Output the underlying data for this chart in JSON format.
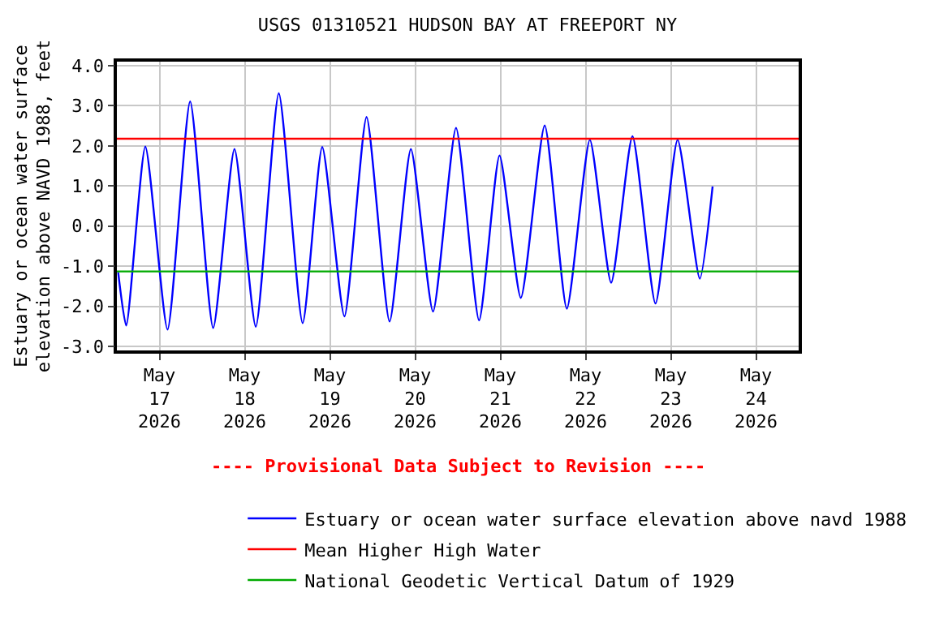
{
  "chart_data": {
    "type": "line",
    "title": "USGS 01310521 HUDSON BAY AT FREEPORT NY",
    "ylabel": "Estuary or ocean water surface\nelevation above NAVD 1988, feet",
    "annotations": [
      "---- Provisional Data Subject to Revision ----"
    ],
    "series": [
      {
        "name": "Estuary or ocean water surface elevation above navd 1988",
        "color": "#0000ff",
        "x": [
          "2026-05-16T12:22",
          "2026-05-16T14:38",
          "2026-05-16T20:01",
          "2026-05-17T02:16",
          "2026-05-17T08:38",
          "2026-05-17T15:07",
          "2026-05-17T21:07",
          "2026-05-18T03:07",
          "2026-05-18T09:36",
          "2026-05-18T16:19",
          "2026-05-18T21:50",
          "2026-05-19T04:05",
          "2026-05-19T10:19",
          "2026-05-19T16:48",
          "2026-05-19T22:48",
          "2026-05-20T05:02",
          "2026-05-20T11:31",
          "2026-05-20T18:00",
          "2026-05-20T23:46",
          "2026-05-21T05:46",
          "2026-05-21T12:29",
          "2026-05-21T18:43",
          "2026-05-22T01:12",
          "2026-05-22T07:12",
          "2026-05-22T13:12",
          "2026-05-22T19:41",
          "2026-05-23T01:55",
          "2026-05-23T08:10",
          "2026-05-23T11:46"
        ],
        "values": [
          -1.15,
          -2.48,
          1.98,
          -2.58,
          3.11,
          -2.54,
          1.92,
          -2.51,
          3.31,
          -2.42,
          1.97,
          -2.25,
          2.72,
          -2.38,
          1.92,
          -2.13,
          2.45,
          -2.35,
          1.76,
          -1.79,
          2.51,
          -2.06,
          2.15,
          -1.41,
          2.24,
          -1.93,
          2.15,
          -1.31,
          0.99
        ]
      }
    ],
    "ref_lines": [
      {
        "axis": "y",
        "value": 2.18,
        "label": "Mean Higher High Water",
        "color": "#ff0000"
      },
      {
        "axis": "y",
        "value": -1.13,
        "label": "National Geodetic Vertical Datum of 1929",
        "color": "#00aa00"
      }
    ],
    "xlim": [
      "2026-05-16T12:00",
      "2026-05-24T12:00"
    ],
    "xticks": [
      {
        "value": "2026-05-17",
        "label": "May\n17\n2026"
      },
      {
        "value": "2026-05-18",
        "label": "May\n18\n2026"
      },
      {
        "value": "2026-05-19",
        "label": "May\n19\n2026"
      },
      {
        "value": "2026-05-20",
        "label": "May\n20\n2026"
      },
      {
        "value": "2026-05-21",
        "label": "May\n21\n2026"
      },
      {
        "value": "2026-05-22",
        "label": "May\n22\n2026"
      },
      {
        "value": "2026-05-23",
        "label": "May\n23\n2026"
      },
      {
        "value": "2026-05-24",
        "label": "May\n24\n2026"
      }
    ],
    "ylim": [
      -3.1,
      4.1
    ],
    "yticks": [
      {
        "value": -3,
        "label": "-3.0"
      },
      {
        "value": -2,
        "label": "-2.0"
      },
      {
        "value": -1,
        "label": "-1.0"
      },
      {
        "value": 0,
        "label": "0.0"
      },
      {
        "value": 1,
        "label": "1.0"
      },
      {
        "value": 2,
        "label": "2.0"
      },
      {
        "value": 3,
        "label": "3.0"
      },
      {
        "value": 4,
        "label": "4.0"
      }
    ],
    "grid": true,
    "legend": "bottom",
    "marker": "none",
    "line_style": "solid"
  }
}
